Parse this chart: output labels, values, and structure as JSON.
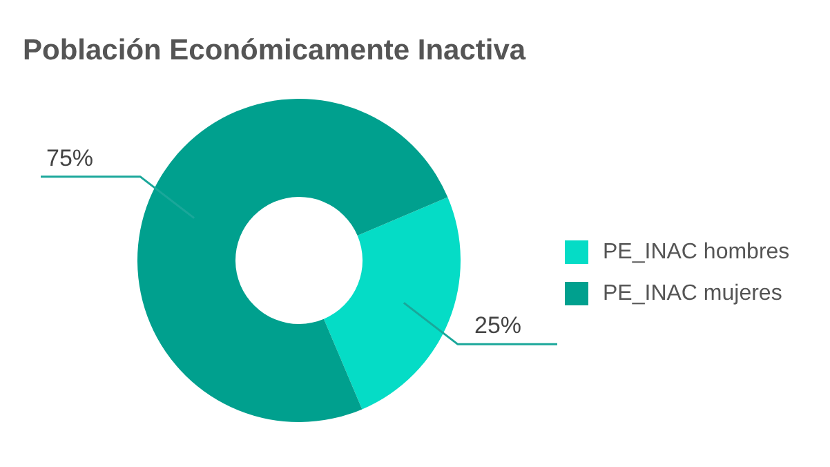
{
  "chart_data": {
    "type": "donut",
    "title": "Población Económicamente Inactiva",
    "categories": [
      "PE_INAC hombres",
      "PE_INAC mujeres"
    ],
    "values": [
      25,
      75
    ],
    "colors": [
      "#05dcc6",
      "#00a08e"
    ],
    "value_labels": [
      "25%",
      "75%"
    ],
    "legend": "right"
  }
}
